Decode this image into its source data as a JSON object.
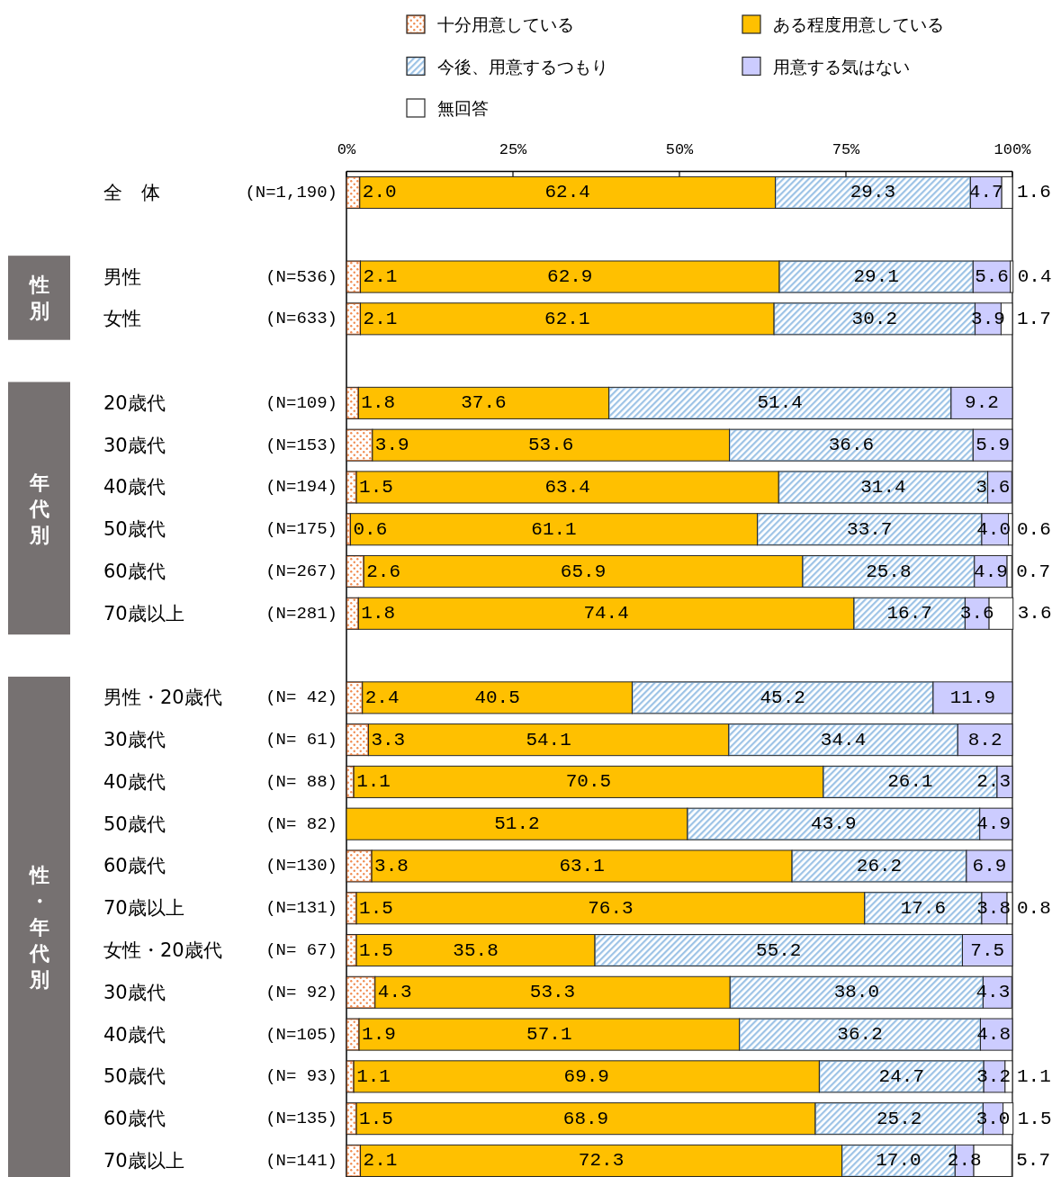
{
  "chart_data": {
    "type": "bar",
    "orientation": "horizontal",
    "stacked": true,
    "categories": [
      "全　体",
      null,
      "男性",
      "女性",
      null,
      "20歳代",
      "30歳代",
      "40歳代",
      "50歳代",
      "60歳代",
      "70歳以上",
      null,
      "男性・20歳代",
      "30歳代",
      "40歳代",
      "50歳代",
      "60歳代",
      "70歳以上",
      "女性・20歳代",
      "30歳代",
      "40歳代",
      "50歳代",
      "60歳代",
      "70歳以上"
    ],
    "y2_categories": [
      "(N=1,190)",
      null,
      "(N=536)",
      "(N=633)",
      null,
      "(N=109)",
      "(N=153)",
      "(N=194)",
      "(N=175)",
      "(N=267)",
      "(N=281)",
      null,
      "(N= 42)",
      "(N= 61)",
      "(N= 88)",
      "(N= 82)",
      "(N=130)",
      "(N=131)",
      "(N= 67)",
      "(N= 92)",
      "(N=105)",
      "(N= 93)",
      "(N=135)",
      "(N=141)"
    ],
    "xlim": [
      0,
      100
    ],
    "xticks": [
      {
        "value": 0,
        "label": "0%"
      },
      {
        "value": 25,
        "label": "25%"
      },
      {
        "value": 50,
        "label": "50%"
      },
      {
        "value": 75,
        "label": "75%"
      },
      {
        "value": 100,
        "label": "100%"
      }
    ],
    "legend": "top",
    "annotations": [
      "性別",
      "年代別",
      "性・年代別"
    ],
    "series": [
      {
        "name": "十分用意している",
        "color": "#f08c50",
        "values": [
          2.0,
          null,
          2.1,
          2.1,
          null,
          1.8,
          3.9,
          1.5,
          0.6,
          2.6,
          1.8,
          null,
          2.4,
          3.3,
          1.1,
          null,
          3.8,
          1.5,
          1.5,
          4.3,
          1.9,
          1.1,
          1.5,
          2.1
        ],
        "value_labels": [
          "2.0",
          null,
          "2.1",
          "2.1",
          null,
          "1.8",
          "3.9",
          "1.5",
          "0.6",
          "2.6",
          "1.8",
          null,
          "2.4",
          "3.3",
          "1.1",
          null,
          "3.8",
          "1.5",
          "1.5",
          "4.3",
          "1.9",
          "1.1",
          "1.5",
          "2.1"
        ]
      },
      {
        "name": "ある程度用意している",
        "color": "#ffc000",
        "values": [
          62.4,
          null,
          62.9,
          62.1,
          null,
          37.6,
          53.6,
          63.4,
          61.1,
          65.9,
          74.4,
          null,
          40.5,
          54.1,
          70.5,
          51.2,
          63.1,
          76.3,
          35.8,
          53.3,
          57.1,
          69.9,
          68.9,
          72.3
        ],
        "value_labels": [
          "62.4",
          null,
          "62.9",
          "62.1",
          null,
          "37.6",
          "53.6",
          "63.4",
          "61.1",
          "65.9",
          "74.4",
          null,
          "40.5",
          "54.1",
          "70.5",
          "51.2",
          "63.1",
          "76.3",
          "35.8",
          "53.3",
          "57.1",
          "69.9",
          "68.9",
          "72.3"
        ]
      },
      {
        "name": "今後、用意するつもり",
        "color": "#9dc3e6",
        "values": [
          29.3,
          null,
          29.1,
          30.2,
          null,
          51.4,
          36.6,
          31.4,
          33.7,
          25.8,
          16.7,
          null,
          45.2,
          34.4,
          26.1,
          43.9,
          26.2,
          17.6,
          55.2,
          38.0,
          36.2,
          24.7,
          25.2,
          17.0
        ],
        "value_labels": [
          "29.3",
          null,
          "29.1",
          "30.2",
          null,
          "51.4",
          "36.6",
          "31.4",
          "33.7",
          "25.8",
          "16.7",
          null,
          "45.2",
          "34.4",
          "26.1",
          "43.9",
          "26.2",
          "17.6",
          "55.2",
          "38.0",
          "36.2",
          "24.7",
          "25.2",
          "17.0"
        ]
      },
      {
        "name": "用意する気はない",
        "color": "#ccccff",
        "values": [
          4.7,
          null,
          5.6,
          3.9,
          null,
          9.2,
          5.9,
          3.6,
          4.0,
          4.9,
          3.6,
          null,
          11.9,
          8.2,
          2.3,
          4.9,
          6.9,
          3.8,
          7.5,
          4.3,
          4.8,
          3.2,
          3.0,
          2.8
        ],
        "value_labels": [
          "4.7",
          null,
          "5.6",
          "3.9",
          null,
          "9.2",
          "5.9",
          "3.6",
          "4.0",
          "4.9",
          "3.6",
          null,
          "11.9",
          "8.2",
          "2.3",
          "4.9",
          "6.9",
          "3.8",
          "7.5",
          "4.3",
          "4.8",
          "3.2",
          "3.0",
          "2.8"
        ]
      },
      {
        "name": "無回答",
        "color": "#ffffff",
        "values": [
          1.6,
          null,
          0.4,
          1.7,
          null,
          null,
          null,
          null,
          0.6,
          0.7,
          3.6,
          null,
          null,
          null,
          null,
          null,
          null,
          0.8,
          null,
          null,
          null,
          1.1,
          1.5,
          5.7
        ],
        "value_labels": [
          "1.6",
          null,
          "0.4",
          "1.7",
          null,
          null,
          null,
          null,
          "0.6",
          "0.7",
          "3.6",
          null,
          null,
          null,
          null,
          null,
          null,
          "0.8",
          null,
          null,
          null,
          "1.1",
          "1.5",
          "5.7"
        ]
      }
    ]
  }
}
